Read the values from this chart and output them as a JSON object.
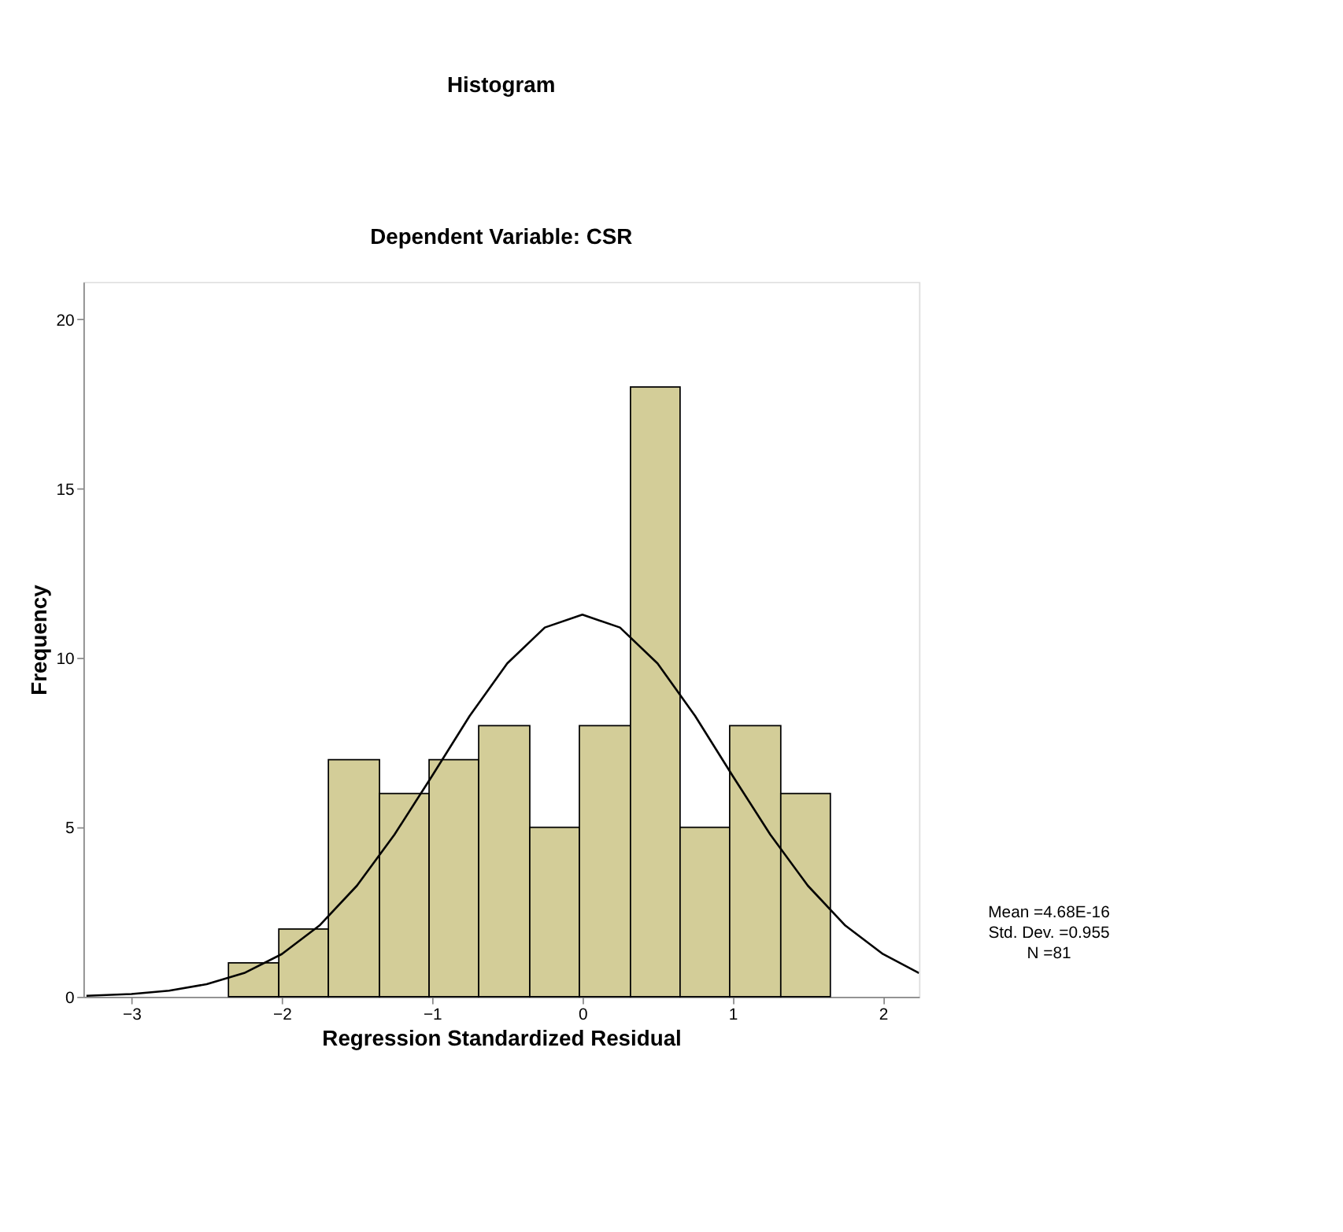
{
  "chart_data": {
    "type": "histogram",
    "title": "Histogram",
    "subtitle": "Dependent Variable: CSR",
    "xlabel": "Regression Standardized Residual",
    "ylabel": "Frequency",
    "bins": [
      -2.355,
      -2.02,
      -1.69,
      -1.35,
      -1.02,
      -0.69,
      -0.35,
      -0.02,
      0.32,
      0.65,
      0.98,
      1.32,
      1.65
    ],
    "values": [
      1,
      2,
      7,
      6,
      7,
      8,
      5,
      8,
      18,
      5,
      8,
      6
    ],
    "color": "#d3cd98",
    "series": [
      {
        "type": "line",
        "color": "#000000",
        "x": [
          -3.3,
          -3.0,
          -2.75,
          -2.5,
          -2.25,
          -2.0,
          -1.75,
          -1.5,
          -1.25,
          -1.0,
          -0.75,
          -0.5,
          -0.25,
          0,
          0.25,
          0.5,
          0.75,
          1.0,
          1.25,
          1.5,
          1.75,
          2.0,
          2.24
        ],
        "values": [
          0.03,
          0.08,
          0.18,
          0.37,
          0.7,
          1.26,
          2.1,
          3.28,
          4.79,
          6.52,
          8.29,
          9.84,
          10.9,
          11.28,
          10.9,
          9.84,
          8.29,
          6.52,
          4.79,
          3.28,
          2.1,
          1.26,
          0.7
        ]
      }
    ],
    "xlim": [
      -3.32,
      2.24
    ],
    "xticks": [
      -3,
      -2,
      -1,
      0,
      1,
      2
    ],
    "ylim": [
      0,
      21.1
    ],
    "yticks": [
      0,
      5,
      10,
      15,
      20
    ],
    "grid": false,
    "annotations": [
      "Mean =4.68E-16",
      "Std. Dev. =0.955",
      "N =81"
    ]
  }
}
